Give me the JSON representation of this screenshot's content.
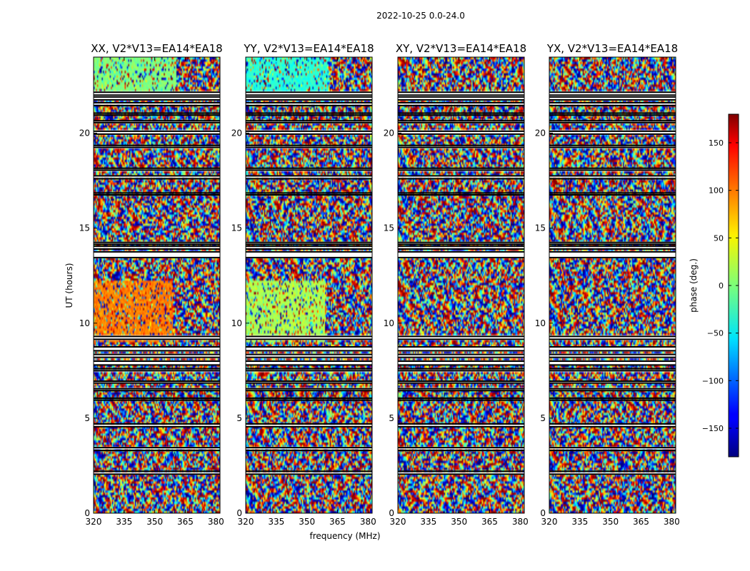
{
  "figure": {
    "suptitle": "2022-10-25 0.0-24.0"
  },
  "chart_data": {
    "type": "heatmap",
    "panels": [
      {
        "title": "XX, V2*V13=EA14*EA18",
        "pol": "XX"
      },
      {
        "title": "YY, V2*V13=EA14*EA18",
        "pol": "YY"
      },
      {
        "title": "XY, V2*V13=EA14*EA18",
        "pol": "XY"
      },
      {
        "title": "YX, V2*V13=EA14*EA18",
        "pol": "YX"
      }
    ],
    "xlabel": "frequency (MHz)",
    "ylabel": "UT (hours)",
    "xlim": [
      320,
      382
    ],
    "ylim": [
      0,
      24
    ],
    "xticks": [
      320,
      335,
      350,
      365,
      380
    ],
    "yticks": [
      0,
      5,
      10,
      15,
      20
    ],
    "colorbar": {
      "label": "phase (deg.)",
      "range": [
        -180,
        180
      ],
      "ticks": [
        -150,
        -100,
        -50,
        0,
        50,
        100,
        150
      ],
      "colormap": "jet"
    },
    "flagged_gaps_ut": [
      [
        2.05,
        2.2
      ],
      [
        3.3,
        3.45
      ],
      [
        4.55,
        4.7
      ],
      [
        5.95,
        6.05
      ],
      [
        6.45,
        6.55
      ],
      [
        6.85,
        6.95
      ],
      [
        7.5,
        7.6
      ],
      [
        7.8,
        8.0
      ],
      [
        8.2,
        8.35
      ],
      [
        8.55,
        8.75
      ],
      [
        9.15,
        9.3
      ],
      [
        13.45,
        13.75
      ],
      [
        13.9,
        14.05
      ],
      [
        14.15,
        14.25
      ],
      [
        16.75,
        16.85
      ],
      [
        17.6,
        17.75
      ],
      [
        18.05,
        18.15
      ],
      [
        19.25,
        19.35
      ],
      [
        19.95,
        20.1
      ],
      [
        20.55,
        20.65
      ],
      [
        20.95,
        21.05
      ],
      [
        21.45,
        21.6
      ],
      [
        21.75,
        21.9
      ],
      [
        22.0,
        22.15
      ]
    ],
    "panel_features": {
      "XX": {
        "dominant_phase_early_ut_9_12": 90,
        "dominant_phase_late_ut_22_24": 0
      },
      "YY": {
        "dominant_phase_early_ut_9_12": 15,
        "dominant_phase_late_ut_22_24": -30
      },
      "XY": {
        "dominant_phase_early_ut_9_12": null,
        "dominant_phase_late_ut_22_24": null
      },
      "YX": {
        "dominant_phase_early_ut_9_12": null,
        "dominant_phase_late_ut_22_24": null
      }
    }
  }
}
